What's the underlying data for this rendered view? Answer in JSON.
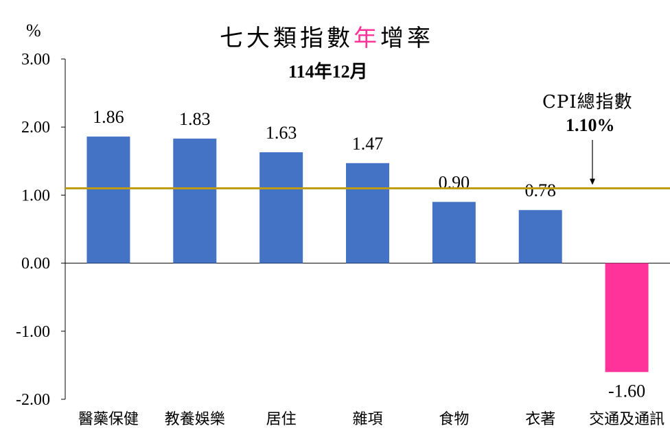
{
  "chart_data": {
    "type": "bar",
    "title_parts": [
      {
        "text": "七大類指數",
        "color": "#000000"
      },
      {
        "text": "年",
        "color": "#ff3399"
      },
      {
        "text": "增率",
        "color": "#000000"
      }
    ],
    "subtitle": "114年12月",
    "ylabel": "%",
    "ylim": [
      -2.0,
      3.0
    ],
    "yticks": [
      "3.00",
      "2.00",
      "1.00",
      "0.00",
      "-1.00",
      "-2.00"
    ],
    "ytick_values": [
      3,
      2,
      1,
      0,
      -1,
      -2
    ],
    "categories": [
      "醫藥保健",
      "教養娛樂",
      "居住",
      "雜項",
      "食物",
      "衣著",
      "交通及通訊"
    ],
    "values": [
      1.86,
      1.83,
      1.63,
      1.47,
      0.9,
      0.78,
      -1.6
    ],
    "value_labels": [
      "1.86",
      "1.83",
      "1.63",
      "1.47",
      "0.90",
      "0.78",
      "-1.60"
    ],
    "bar_colors": [
      "#4472c4",
      "#4472c4",
      "#4472c4",
      "#4472c4",
      "#4472c4",
      "#4472c4",
      "#ff3399"
    ],
    "reference_line": {
      "label": "CPI總指數",
      "value_label": "1.10%",
      "value": 1.1,
      "color": "#c09b14"
    },
    "grid": false
  }
}
